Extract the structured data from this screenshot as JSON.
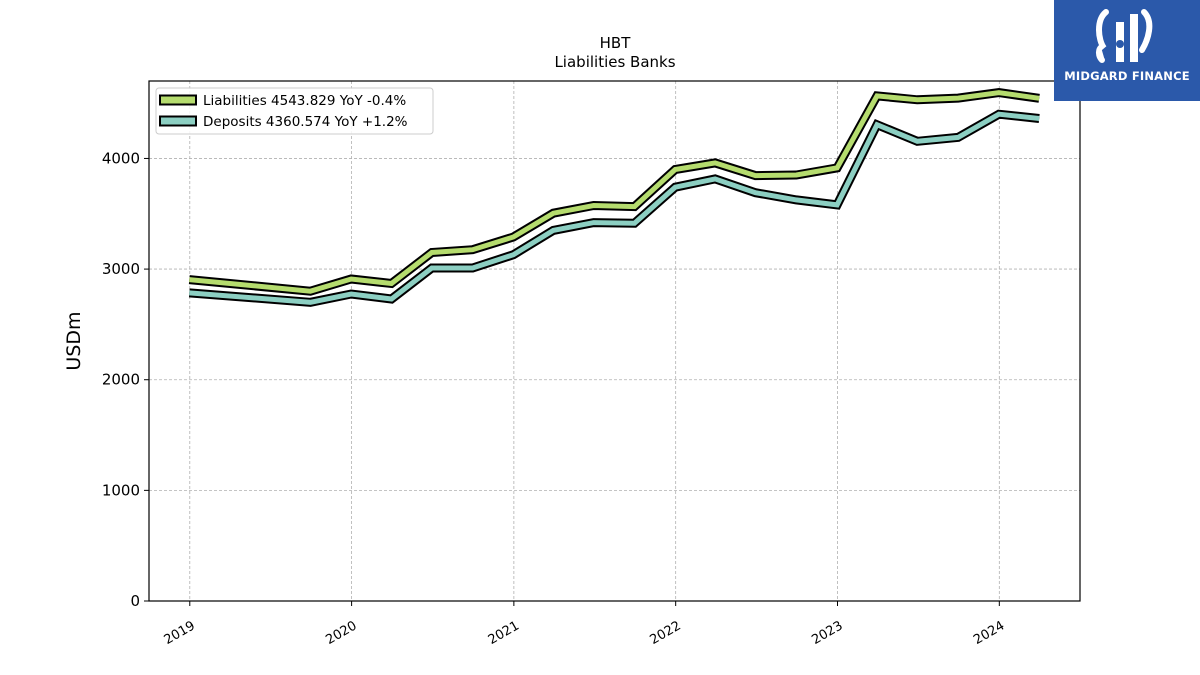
{
  "brand": {
    "name": "MIDGARD FINANCE",
    "color": "#2b59aa"
  },
  "chart_data": {
    "type": "line",
    "title": "HBT",
    "subtitle": "Liabilities Banks",
    "ylabel": "USDm",
    "xlabel": "",
    "ylim": [
      0,
      4700
    ],
    "yticks": [
      0,
      1000,
      2000,
      3000,
      4000
    ],
    "xticks": [
      "2019",
      "2020",
      "2021",
      "2022",
      "2023",
      "2024"
    ],
    "grid": true,
    "legend_position": "top-left",
    "x": [
      "2018-12-31",
      "2019-09-30",
      "2019-12-31",
      "2020-03-31",
      "2020-06-30",
      "2020-09-30",
      "2020-12-31",
      "2021-03-31",
      "2021-06-30",
      "2021-09-30",
      "2021-12-31",
      "2022-03-31",
      "2022-06-30",
      "2022-09-30",
      "2022-12-31",
      "2023-03-31",
      "2023-06-30",
      "2023-09-30",
      "2023-12-31",
      "2024-03-31"
    ],
    "series": [
      {
        "name": "Liabilities",
        "legend": "Liabilities  4543.829 YoY -0.4%",
        "color": "#b5dc6e",
        "values": [
          2905,
          2800,
          2910,
          2870,
          3150,
          3175,
          3290,
          3505,
          3575,
          3565,
          3900,
          3960,
          3845,
          3850,
          3915,
          4565,
          4530,
          4545,
          4595,
          4544
        ]
      },
      {
        "name": "Deposits",
        "legend": "Deposits  4360.574 YoY +1.2%",
        "color": "#8ccfc2",
        "values": [
          2785,
          2700,
          2775,
          2730,
          3010,
          3010,
          3130,
          3350,
          3420,
          3415,
          3740,
          3815,
          3690,
          3625,
          3580,
          4305,
          4155,
          4190,
          4400,
          4361
        ]
      }
    ]
  }
}
